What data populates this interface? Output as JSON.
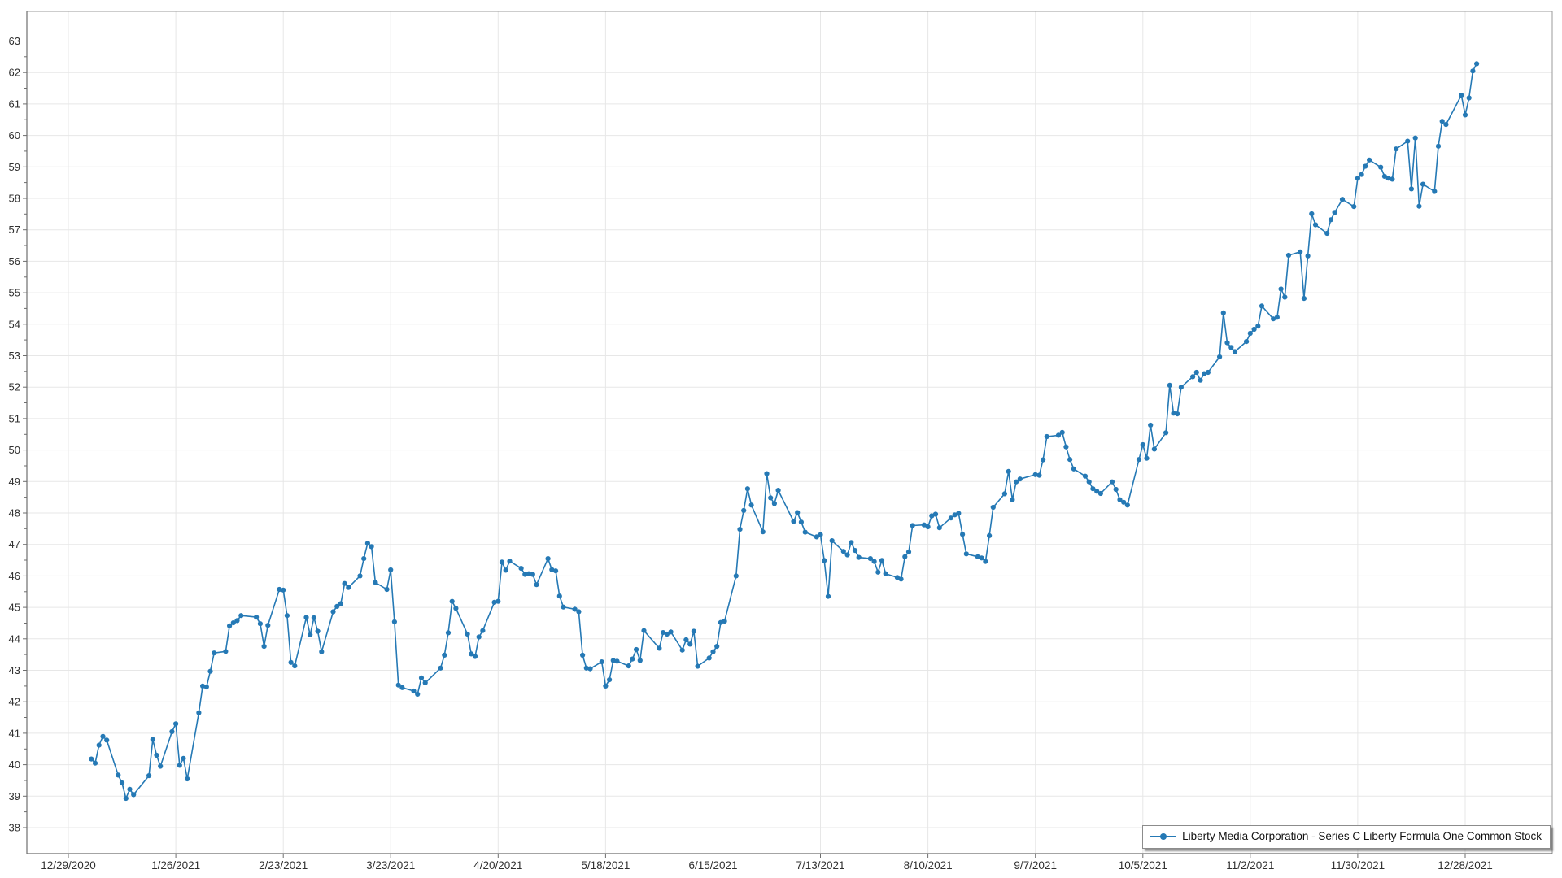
{
  "chart_data": {
    "type": "line",
    "title": "",
    "xlabel": "",
    "ylabel": "",
    "grid": true,
    "legend_position": "bottom-right",
    "x_axis_start_date": "2020-12-29",
    "x_tick_interval_days": 28,
    "x_tick_labels": [
      "12/29/2020",
      "1/26/2021",
      "2/23/2021",
      "3/23/2021",
      "4/20/2021",
      "5/18/2021",
      "6/15/2021",
      "7/13/2021",
      "8/10/2021",
      "9/7/2021",
      "10/5/2021",
      "11/2/2021",
      "11/30/2021",
      "12/28/2021"
    ],
    "y_tick_min": 38,
    "y_tick_max": 63,
    "y_tick_step": 1,
    "y_minor_tick_step": 0.5,
    "ylim": [
      37.15,
      63.95
    ],
    "series": [
      {
        "name": "Liberty Media Corporation - Series C Liberty Formula One Common Stock",
        "color": "#2579b5",
        "marker": "circle",
        "start_date": "2021-01-04",
        "market_holidays": [
          "2021-01-18",
          "2021-02-15",
          "2021-04-02",
          "2021-05-31",
          "2021-07-05",
          "2021-09-06",
          "2021-11-25",
          "2021-12-24"
        ],
        "values": [
          40.18,
          40.05,
          40.62,
          40.9,
          40.78,
          39.67,
          39.42,
          38.93,
          39.22,
          39.05,
          39.65,
          40.8,
          40.3,
          39.95,
          41.05,
          41.3,
          39.98,
          40.2,
          39.55,
          41.65,
          42.5,
          42.47,
          42.97,
          43.55,
          43.6,
          44.41,
          44.51,
          44.58,
          44.74,
          44.69,
          44.48,
          43.76,
          44.43,
          45.57,
          45.55,
          44.74,
          43.25,
          43.14,
          44.68,
          44.13,
          44.67,
          44.24,
          43.59,
          44.86,
          45.03,
          45.12,
          45.76,
          45.63,
          46.0,
          46.55,
          47.04,
          46.93,
          45.79,
          45.57,
          46.19,
          44.54,
          42.53,
          42.45,
          42.34,
          42.24,
          42.76,
          42.6,
          43.07,
          43.48,
          44.19,
          45.19,
          44.97,
          44.15,
          43.52,
          43.44,
          44.06,
          44.26,
          45.16,
          45.19,
          46.44,
          46.18,
          46.47,
          46.24,
          46.05,
          46.07,
          46.05,
          45.72,
          46.55,
          46.2,
          46.16,
          45.36,
          45.01,
          44.94,
          44.86,
          43.48,
          43.07,
          43.05,
          43.27,
          42.5,
          42.7,
          43.31,
          43.29,
          43.14,
          43.36,
          43.66,
          43.31,
          44.26,
          43.7,
          44.2,
          44.15,
          44.22,
          43.64,
          43.97,
          43.83,
          44.24,
          43.13,
          43.39,
          43.59,
          43.76,
          44.52,
          44.56,
          46.0,
          47.48,
          48.08,
          48.77,
          48.25,
          47.4,
          49.25,
          48.48,
          48.3,
          48.72,
          47.73,
          48.01,
          47.71,
          47.39,
          47.24,
          47.31,
          46.49,
          45.35,
          47.12,
          46.78,
          46.67,
          47.06,
          46.81,
          46.59,
          46.55,
          46.46,
          46.12,
          46.49,
          46.07,
          45.95,
          45.9,
          46.61,
          46.76,
          47.6,
          47.62,
          47.56,
          47.91,
          47.96,
          47.53,
          47.84,
          47.94,
          47.99,
          47.32,
          46.7,
          46.61,
          46.57,
          46.46,
          47.28,
          48.18,
          48.61,
          49.32,
          48.42,
          48.99,
          49.08,
          49.22,
          49.2,
          49.69,
          50.43,
          50.47,
          50.56,
          50.1,
          49.7,
          49.4,
          49.17,
          48.99,
          48.77,
          48.69,
          48.62,
          48.99,
          48.75,
          48.42,
          48.34,
          48.25,
          49.7,
          50.17,
          49.74,
          50.79,
          50.03,
          50.55,
          52.06,
          51.17,
          51.15,
          52.0,
          52.33,
          52.47,
          52.22,
          52.43,
          52.47,
          52.96,
          54.36,
          53.41,
          53.26,
          53.13,
          53.45,
          53.71,
          53.84,
          53.94,
          54.58,
          54.17,
          54.22,
          55.12,
          54.86,
          56.19,
          56.3,
          54.82,
          56.17,
          57.51,
          57.16,
          56.89,
          57.32,
          57.55,
          57.97,
          57.74,
          58.64,
          58.76,
          59.02,
          59.22,
          58.99,
          58.7,
          58.64,
          58.61,
          59.57,
          59.82,
          58.3,
          59.92,
          57.75,
          58.45,
          58.22,
          59.66,
          60.45,
          60.35,
          61.28,
          60.65,
          61.19,
          62.05,
          62.28
        ]
      }
    ]
  },
  "legend": {
    "label": "Liberty Media Corporation - Series C Liberty Formula One Common Stock"
  },
  "colors": {
    "line": "#2579b5",
    "marker": "#2579b5",
    "gridline": "#e7e7e7",
    "axis": "#6e6e6e",
    "frame": "#9b9b9b",
    "tick_text": "#303030",
    "legend_border": "#8c8c8c",
    "background": "#ffffff"
  }
}
